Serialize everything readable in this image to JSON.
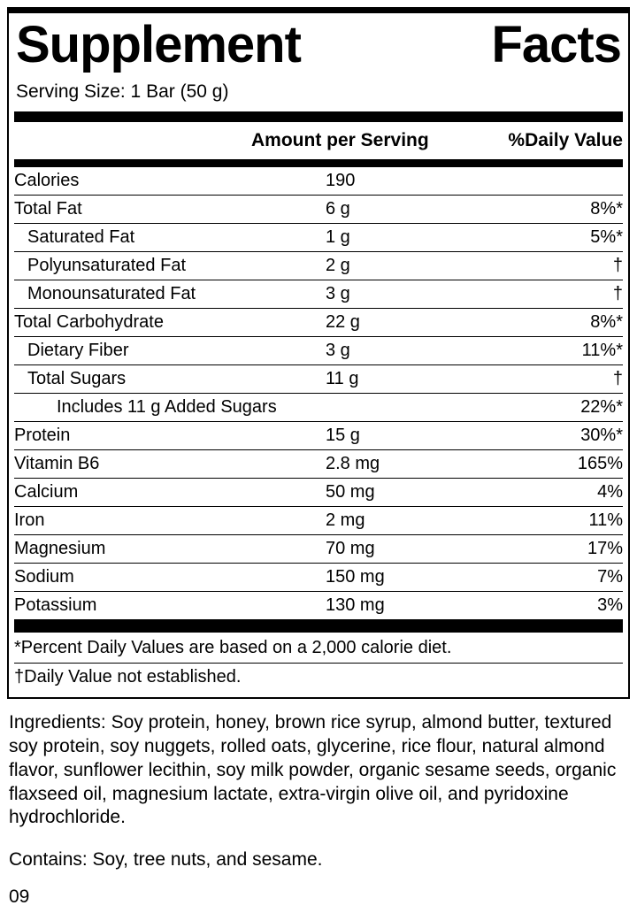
{
  "colors": {
    "text": "#000000",
    "background": "#ffffff"
  },
  "panel": {
    "title": "Supplement Facts",
    "serving_size": "Serving Size: 1 Bar (50 g)",
    "columns": {
      "amount": "Amount per Serving",
      "dv": "%Daily Value"
    },
    "rows": [
      {
        "name": "Calories",
        "amount": "190",
        "dv": "",
        "indent": 0
      },
      {
        "name": "Total Fat",
        "amount": "6 g",
        "dv": "8%*",
        "indent": 0
      },
      {
        "name": "Saturated Fat",
        "amount": "1 g",
        "dv": "5%*",
        "indent": 1
      },
      {
        "name": "Polyunsaturated Fat",
        "amount": "2 g",
        "dv": "†",
        "indent": 1
      },
      {
        "name": "Monounsaturated Fat",
        "amount": "3 g",
        "dv": "†",
        "indent": 1
      },
      {
        "name": "Total Carbohydrate",
        "amount": "22 g",
        "dv": "8%*",
        "indent": 0
      },
      {
        "name": "Dietary Fiber",
        "amount": "3 g",
        "dv": "11%*",
        "indent": 1
      },
      {
        "name": "Total Sugars",
        "amount": "11 g",
        "dv": "†",
        "indent": 1
      },
      {
        "name": "Includes 11 g Added Sugars",
        "amount": "",
        "dv": "22%*",
        "indent": 2
      },
      {
        "name": "Protein",
        "amount": "15 g",
        "dv": "30%*",
        "indent": 0
      },
      {
        "name": "Vitamin B6",
        "amount": "2.8 mg",
        "dv": "165%",
        "indent": 0
      },
      {
        "name": "Calcium",
        "amount": "50 mg",
        "dv": "4%",
        "indent": 0
      },
      {
        "name": "Iron",
        "amount": "2 mg",
        "dv": "11%",
        "indent": 0
      },
      {
        "name": "Magnesium",
        "amount": "70 mg",
        "dv": "17%",
        "indent": 0
      },
      {
        "name": "Sodium",
        "amount": "150 mg",
        "dv": "7%",
        "indent": 0
      },
      {
        "name": "Potassium",
        "amount": "130 mg",
        "dv": "3%",
        "indent": 0
      }
    ],
    "footnotes": [
      "*Percent Daily Values are based on a 2,000 calorie diet.",
      "†Daily Value not established."
    ],
    "ingredients": "Ingredients: Soy protein, honey, brown rice syrup, almond butter, textured soy protein, soy nuggets, rolled oats, glycerine, rice flour, natural almond flavor, sunflower lecithin, soy milk powder, organic sesame seeds, organic flaxseed oil, magnesium lactate, extra-virgin olive oil, and pyridoxine hydrochloride.",
    "contains": "Contains: Soy, tree nuts, and sesame.",
    "code": "09"
  }
}
